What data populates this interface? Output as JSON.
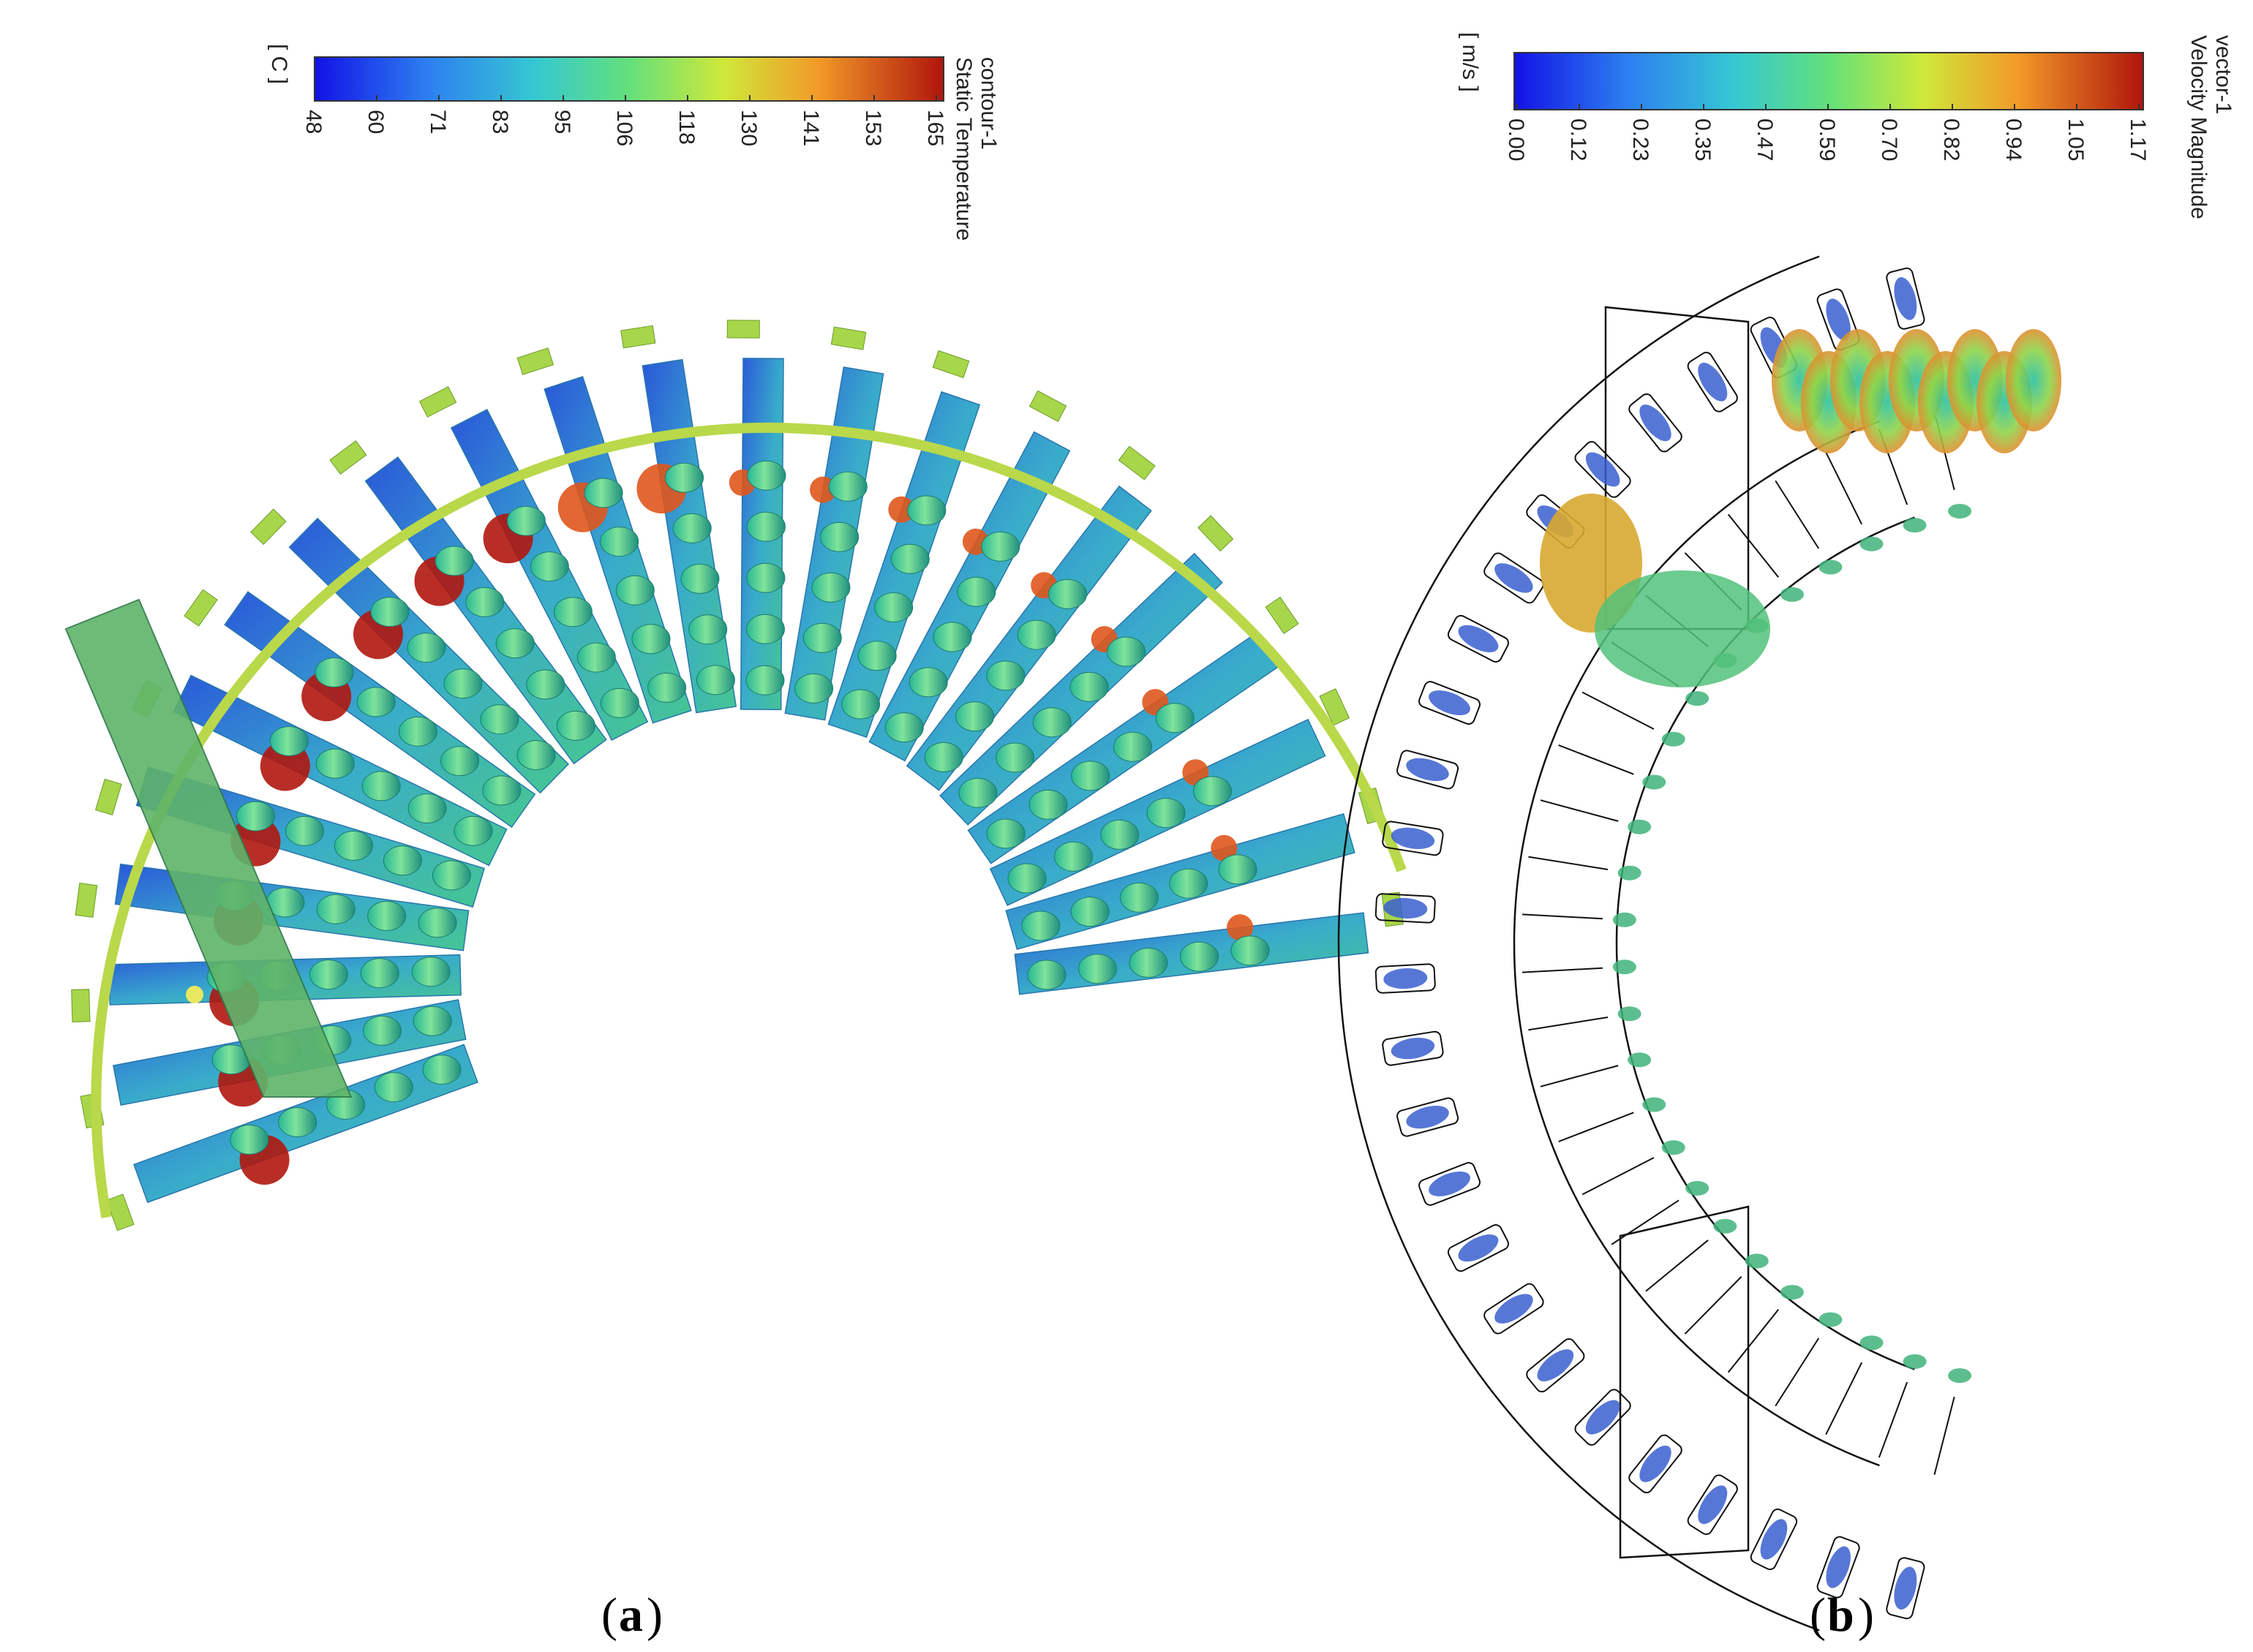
{
  "panel_a": {
    "legend": {
      "title_line1": "contour-1",
      "title_line2": "Static Temperature",
      "unit": "[ C ]",
      "ticks": [
        "48",
        "60",
        "71",
        "83",
        "95",
        "106",
        "118",
        "130",
        "141",
        "153",
        "165"
      ]
    },
    "caption_letter": "a"
  },
  "panel_b": {
    "legend": {
      "title_line1": "vector-1",
      "title_line2": "Velocity Magnitude",
      "unit": "[ m/s ]",
      "ticks": [
        "0.00",
        "0.12",
        "0.23",
        "0.35",
        "0.47",
        "0.59",
        "0.70",
        "0.82",
        "0.94",
        "1.05",
        "1.17"
      ]
    },
    "caption_letter": "b"
  },
  "colors": {
    "blue": "#1a23d8",
    "cyan": "#3fb6e0",
    "green": "#5fd18a",
    "yellow": "#d6e03a",
    "orange": "#f08a24",
    "red": "#b0190f",
    "outline": "#111111"
  }
}
